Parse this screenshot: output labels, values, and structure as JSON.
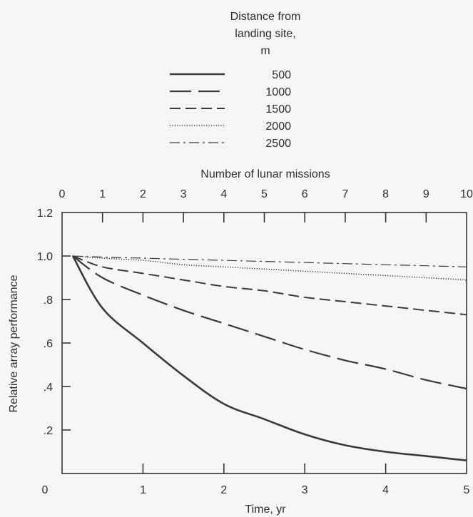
{
  "chart_data": {
    "type": "line",
    "xlabel": "Time, yr",
    "ylabel": "Relative array performance",
    "xlim": [
      0,
      5
    ],
    "ylim": [
      0,
      1.2
    ],
    "x_ticks": [
      0,
      1,
      2,
      3,
      4,
      5
    ],
    "x_tick_labels": [
      "0",
      "1",
      "2",
      "3",
      "4",
      "5"
    ],
    "y_ticks": [
      0.2,
      0.4,
      0.6,
      0.8,
      1.0,
      1.2
    ],
    "y_tick_labels": [
      ".2",
      ".4",
      ".6",
      ".8",
      "1.0",
      "1.2"
    ],
    "top_axis": {
      "label": "Number of lunar missions",
      "ticks": [
        0,
        1,
        2,
        3,
        4,
        5,
        6,
        7,
        8,
        9,
        10
      ],
      "tick_labels": [
        "0",
        "1",
        "2",
        "3",
        "4",
        "5",
        "6",
        "7",
        "8",
        "9",
        "10"
      ]
    },
    "grid": false,
    "legend": {
      "title_lines": [
        "Distance from",
        "landing site,",
        "m"
      ],
      "placement": "top-center"
    },
    "x": [
      0,
      0.5,
      1,
      1.5,
      2,
      2.5,
      3,
      3.5,
      4,
      4.5,
      5
    ],
    "series": [
      {
        "name": "500",
        "style": "solid",
        "values": [
          1.0,
          0.76,
          0.6,
          0.45,
          0.32,
          0.25,
          0.18,
          0.13,
          0.1,
          0.08,
          0.06
        ]
      },
      {
        "name": "1000",
        "style": "long-dash",
        "values": [
          1.0,
          0.9,
          0.82,
          0.75,
          0.69,
          0.63,
          0.57,
          0.52,
          0.48,
          0.43,
          0.39
        ]
      },
      {
        "name": "1500",
        "style": "dash",
        "values": [
          1.0,
          0.95,
          0.92,
          0.89,
          0.86,
          0.84,
          0.81,
          0.79,
          0.77,
          0.75,
          0.73
        ]
      },
      {
        "name": "2000",
        "style": "dotted",
        "values": [
          1.0,
          0.99,
          0.98,
          0.96,
          0.95,
          0.94,
          0.93,
          0.92,
          0.91,
          0.9,
          0.89
        ]
      },
      {
        "name": "2500",
        "style": "dash-dot",
        "values": [
          1.0,
          0.995,
          0.99,
          0.985,
          0.98,
          0.975,
          0.97,
          0.965,
          0.96,
          0.955,
          0.95
        ]
      }
    ],
    "colors": {
      "line": "#3a3a3a",
      "axis": "#2a2a2a",
      "background": "#f6f6f4"
    }
  }
}
